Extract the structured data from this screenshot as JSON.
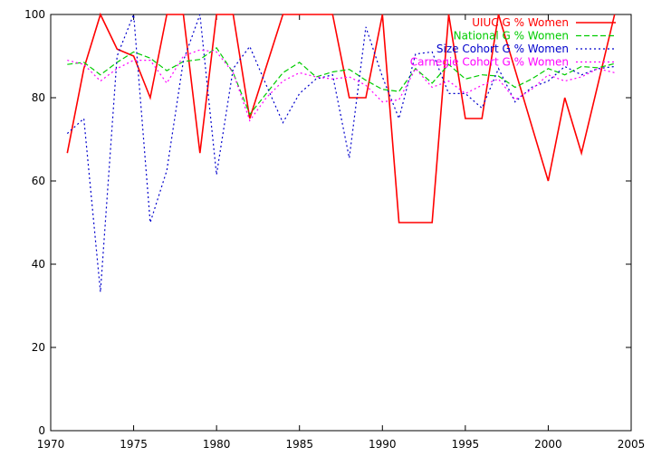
{
  "chart_data": {
    "type": "line",
    "title": "",
    "xlabel": "",
    "ylabel": "",
    "xlim": [
      1970,
      2005
    ],
    "ylim": [
      0,
      100
    ],
    "xticks": [
      1970,
      1975,
      1980,
      1985,
      1990,
      1995,
      2000,
      2005
    ],
    "yticks": [
      0,
      20,
      40,
      60,
      80,
      100
    ],
    "grid": false,
    "legend_position": "top-right",
    "x": [
      1971,
      1972,
      1973,
      1974,
      1975,
      1976,
      1977,
      1978,
      1979,
      1980,
      1981,
      1982,
      1983,
      1984,
      1985,
      1986,
      1987,
      1988,
      1989,
      1990,
      1991,
      1992,
      1993,
      1994,
      1995,
      1996,
      1997,
      1998,
      1999,
      2000,
      2001,
      2002,
      2003,
      2004
    ],
    "series": [
      {
        "name": "UIUC G % Women",
        "color": "#ff0000",
        "style": "solid",
        "values": [
          66.7,
          87,
          100,
          91.7,
          90,
          80,
          100,
          100,
          66.7,
          100,
          100,
          75,
          87.5,
          100,
          100,
          100,
          100,
          80,
          80,
          100,
          50,
          50,
          50,
          100,
          75,
          75,
          100,
          86.7,
          73.3,
          60,
          80,
          66.7,
          83.3,
          100
        ]
      },
      {
        "name": "National G % Women",
        "color": "#00cc00",
        "style": "dashed",
        "values": [
          88,
          88.5,
          85.5,
          88.5,
          91,
          89.5,
          86.5,
          88.7,
          89.2,
          92,
          86,
          76,
          81,
          86,
          88.5,
          85,
          86.2,
          86.8,
          84.2,
          82,
          81.5,
          87,
          83.5,
          88,
          84.5,
          85.5,
          85.2,
          82.5,
          84.5,
          87,
          85.5,
          87.5,
          87.2,
          88.2
        ]
      },
      {
        "name": "Size Cohort G % Women",
        "color": "#0000cc",
        "style": "dotted",
        "values": [
          71.4,
          75,
          33.3,
          90,
          100,
          50,
          62.5,
          88.9,
          100,
          61.5,
          87,
          92.3,
          83,
          74,
          81,
          84.5,
          85.5,
          65.5,
          97,
          85,
          75,
          90.5,
          91,
          81,
          81,
          77.5,
          87,
          79,
          82.5,
          84,
          87.5,
          85.5,
          87,
          87.5
        ]
      },
      {
        "name": "Carnegie Cohort G % Women",
        "color": "#ff00ff",
        "style": "dotted",
        "values": [
          89,
          88,
          84,
          87,
          89,
          89,
          83.5,
          90,
          91.5,
          91,
          86,
          74.5,
          80,
          84,
          86,
          85,
          84.5,
          85,
          83,
          79,
          79.5,
          87,
          82.5,
          84,
          81,
          83,
          84.5,
          79.5,
          82,
          85.5,
          84,
          85,
          87,
          86
        ]
      }
    ]
  }
}
